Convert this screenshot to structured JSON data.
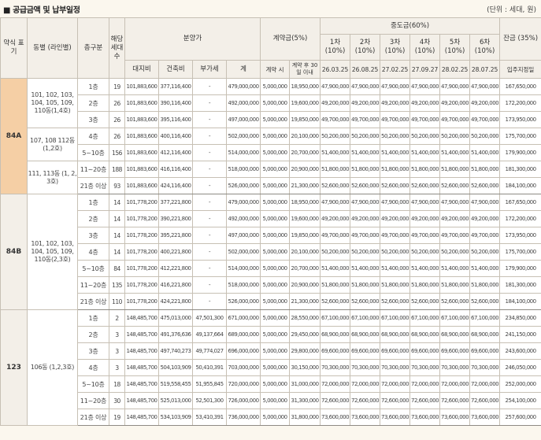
{
  "title": "■ 공급금액 및 납부일정",
  "unit": "(단위 : 세대, 원)",
  "headers": {
    "type": "약식 표기",
    "dong": "동별 (라인별)",
    "floor": "층구분",
    "households": "해당 세대수",
    "price": "분양가",
    "land": "대지비",
    "building": "건축비",
    "vat": "부가세",
    "total": "계",
    "deposit": "계약금(5%)",
    "dep_at_contract": "계약 시",
    "dep_after_30": "계약 후 30일 이내",
    "mid": "중도금(60%)",
    "mid_1": "1차 (10%)",
    "mid_2": "2차 (10%)",
    "mid_3": "3차 (10%)",
    "mid_4": "4차 (10%)",
    "mid_5": "5차 (10%)",
    "mid_6": "6차 (10%)",
    "balance": "잔금 (35%)",
    "date_1": "26.03.25",
    "date_2": "26.08.25",
    "date_3": "27.02.25",
    "date_4": "27.09.27",
    "date_5": "28.02.25",
    "date_6": "28.07.25",
    "date_balance": "입주지정일"
  },
  "groups": [
    {
      "type": "84A",
      "dong_blocks": [
        {
          "label": "101, 102, 103, 104, 105, 109, 110동(1,4호)",
          "rows": 3
        },
        {
          "label": "107, 108 112동 (1,2호)",
          "rows": 2
        },
        {
          "label": "111, 113동 (1, 2, 3호)",
          "rows": 2
        }
      ],
      "rows": [
        [
          "1층",
          "19",
          "101,883,600",
          "377,116,400",
          "-",
          "479,000,000",
          "5,000,000",
          "18,950,000",
          "47,900,000",
          "47,900,000",
          "47,900,000",
          "47,900,000",
          "47,900,000",
          "47,900,000",
          "167,650,000"
        ],
        [
          "2층",
          "26",
          "101,883,600",
          "390,116,400",
          "-",
          "492,000,000",
          "5,000,000",
          "19,600,000",
          "49,200,000",
          "49,200,000",
          "49,200,000",
          "49,200,000",
          "49,200,000",
          "49,200,000",
          "172,200,000"
        ],
        [
          "3층",
          "26",
          "101,883,600",
          "395,116,400",
          "-",
          "497,000,000",
          "5,000,000",
          "19,850,000",
          "49,700,000",
          "49,700,000",
          "49,700,000",
          "49,700,000",
          "49,700,000",
          "49,700,000",
          "173,950,000"
        ],
        [
          "4층",
          "26",
          "101,883,600",
          "400,116,400",
          "-",
          "502,000,000",
          "5,000,000",
          "20,100,000",
          "50,200,000",
          "50,200,000",
          "50,200,000",
          "50,200,000",
          "50,200,000",
          "50,200,000",
          "175,700,000"
        ],
        [
          "5~10층",
          "156",
          "101,883,600",
          "412,116,400",
          "-",
          "514,000,000",
          "5,000,000",
          "20,700,000",
          "51,400,000",
          "51,400,000",
          "51,400,000",
          "51,400,000",
          "51,400,000",
          "51,400,000",
          "179,900,000"
        ],
        [
          "11~20층",
          "188",
          "101,883,600",
          "416,116,400",
          "-",
          "518,000,000",
          "5,000,000",
          "20,900,000",
          "51,800,000",
          "51,800,000",
          "51,800,000",
          "51,800,000",
          "51,800,000",
          "51,800,000",
          "181,300,000"
        ],
        [
          "21층 이상",
          "93",
          "101,883,600",
          "424,116,400",
          "-",
          "526,000,000",
          "5,000,000",
          "21,300,000",
          "52,600,000",
          "52,600,000",
          "52,600,000",
          "52,600,000",
          "52,600,000",
          "52,600,000",
          "184,100,000"
        ]
      ]
    },
    {
      "type": "84B",
      "dong_blocks": [
        {
          "label": "101, 102, 103, 104, 105, 109, 110동(2,3호)",
          "rows": 7
        }
      ],
      "rows": [
        [
          "1층",
          "14",
          "101,778,200",
          "377,221,800",
          "-",
          "479,000,000",
          "5,000,000",
          "18,950,000",
          "47,900,000",
          "47,900,000",
          "47,900,000",
          "47,900,000",
          "47,900,000",
          "47,900,000",
          "167,650,000"
        ],
        [
          "2층",
          "14",
          "101,778,200",
          "390,221,800",
          "-",
          "492,000,000",
          "5,000,000",
          "19,600,000",
          "49,200,000",
          "49,200,000",
          "49,200,000",
          "49,200,000",
          "49,200,000",
          "49,200,000",
          "172,200,000"
        ],
        [
          "3층",
          "14",
          "101,778,200",
          "395,221,800",
          "-",
          "497,000,000",
          "5,000,000",
          "19,850,000",
          "49,700,000",
          "49,700,000",
          "49,700,000",
          "49,700,000",
          "49,700,000",
          "49,700,000",
          "173,950,000"
        ],
        [
          "4층",
          "14",
          "101,778,200",
          "400,221,800",
          "-",
          "502,000,000",
          "5,000,000",
          "20,100,000",
          "50,200,000",
          "50,200,000",
          "50,200,000",
          "50,200,000",
          "50,200,000",
          "50,200,000",
          "175,700,000"
        ],
        [
          "5~10층",
          "84",
          "101,778,200",
          "412,221,800",
          "-",
          "514,000,000",
          "5,000,000",
          "20,700,000",
          "51,400,000",
          "51,400,000",
          "51,400,000",
          "51,400,000",
          "51,400,000",
          "51,400,000",
          "179,900,000"
        ],
        [
          "11~20층",
          "135",
          "101,778,200",
          "416,221,800",
          "-",
          "518,000,000",
          "5,000,000",
          "20,900,000",
          "51,800,000",
          "51,800,000",
          "51,800,000",
          "51,800,000",
          "51,800,000",
          "51,800,000",
          "181,300,000"
        ],
        [
          "21층 이상",
          "110",
          "101,778,200",
          "424,221,800",
          "-",
          "526,000,000",
          "5,000,000",
          "21,300,000",
          "52,600,000",
          "52,600,000",
          "52,600,000",
          "52,600,000",
          "52,600,000",
          "52,600,000",
          "184,100,000"
        ]
      ]
    },
    {
      "type": "123",
      "dong_blocks": [
        {
          "label": "106동 (1,2,3호)",
          "rows": 7
        }
      ],
      "rows": [
        [
          "1층",
          "2",
          "148,485,700",
          "475,013,000",
          "47,501,300",
          "671,000,000",
          "5,000,000",
          "28,550,000",
          "67,100,000",
          "67,100,000",
          "67,100,000",
          "67,100,000",
          "67,100,000",
          "67,100,000",
          "234,850,000"
        ],
        [
          "2층",
          "3",
          "148,485,700",
          "491,376,636",
          "49,137,664",
          "689,000,000",
          "5,000,000",
          "29,450,000",
          "68,900,000",
          "68,900,000",
          "68,900,000",
          "68,900,000",
          "68,900,000",
          "68,900,000",
          "241,150,000"
        ],
        [
          "3층",
          "3",
          "148,485,700",
          "497,740,273",
          "49,774,027",
          "696,000,000",
          "5,000,000",
          "29,800,000",
          "69,600,000",
          "69,600,000",
          "69,600,000",
          "69,600,000",
          "69,600,000",
          "69,600,000",
          "243,600,000"
        ],
        [
          "4층",
          "3",
          "148,485,700",
          "504,103,909",
          "50,410,391",
          "703,000,000",
          "5,000,000",
          "30,150,000",
          "70,300,000",
          "70,300,000",
          "70,300,000",
          "70,300,000",
          "70,300,000",
          "70,300,000",
          "246,050,000"
        ],
        [
          "5~10층",
          "18",
          "148,485,700",
          "519,558,455",
          "51,955,845",
          "720,000,000",
          "5,000,000",
          "31,000,000",
          "72,000,000",
          "72,000,000",
          "72,000,000",
          "72,000,000",
          "72,000,000",
          "72,000,000",
          "252,000,000"
        ],
        [
          "11~20층",
          "30",
          "148,485,700",
          "525,013,000",
          "52,501,300",
          "726,000,000",
          "5,000,000",
          "31,300,000",
          "72,600,000",
          "72,600,000",
          "72,600,000",
          "72,600,000",
          "72,600,000",
          "72,600,000",
          "254,100,000"
        ],
        [
          "21층 이상",
          "19",
          "148,485,700",
          "534,103,909",
          "53,410,391",
          "736,000,000",
          "5,000,000",
          "31,800,000",
          "73,600,000",
          "73,600,000",
          "73,600,000",
          "73,600,000",
          "73,600,000",
          "73,600,000",
          "257,600,000"
        ]
      ]
    }
  ]
}
